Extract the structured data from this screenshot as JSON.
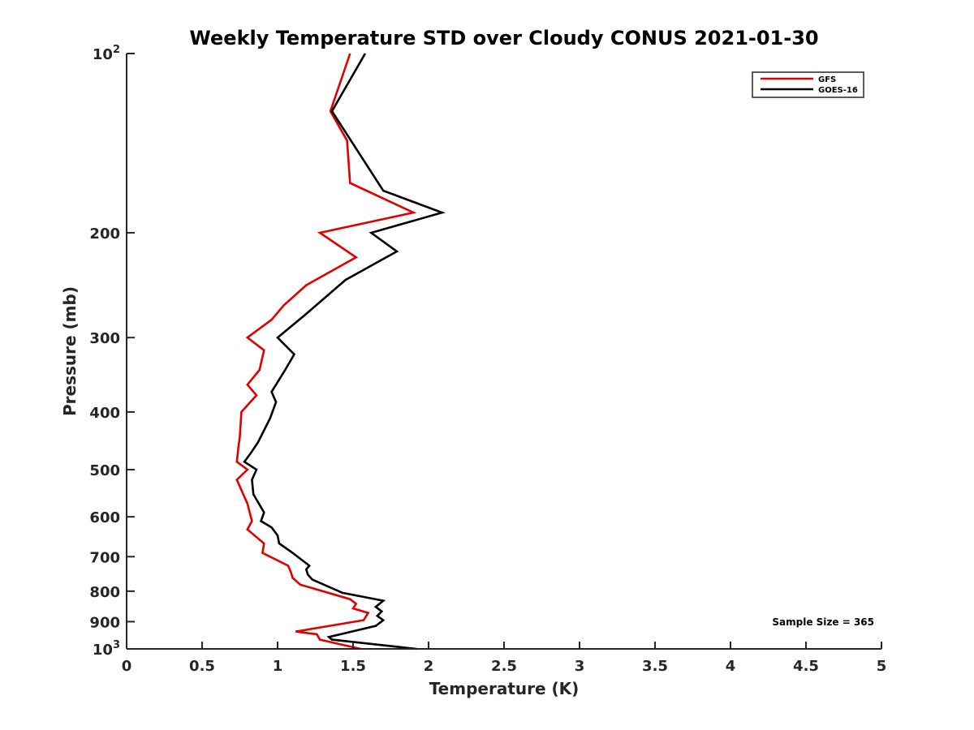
{
  "chart_data": {
    "type": "line",
    "title": "Weekly Temperature STD over Cloudy CONUS 2021-01-30",
    "xlabel": "Temperature (K)",
    "ylabel": "Pressure (mb)",
    "xlim": [
      0,
      5
    ],
    "ylim": [
      100,
      1000
    ],
    "yscale": "log",
    "yreversed": true,
    "grid": false,
    "legend_position": "top-right",
    "x_ticks": [
      0,
      0.5,
      1,
      1.5,
      2,
      2.5,
      3,
      3.5,
      4,
      4.5,
      5
    ],
    "x_tick_labels": [
      "0",
      "0.5",
      "1",
      "1.5",
      "2",
      "2.5",
      "3",
      "3.5",
      "4",
      "4.5",
      "5"
    ],
    "y_ticks": [
      {
        "value": 100,
        "base": "10",
        "exp": "2"
      },
      {
        "value": 200,
        "label": "200"
      },
      {
        "value": 300,
        "label": "300"
      },
      {
        "value": 400,
        "label": "400"
      },
      {
        "value": 500,
        "label": "500"
      },
      {
        "value": 600,
        "label": "600"
      },
      {
        "value": 700,
        "label": "700"
      },
      {
        "value": 800,
        "label": "800"
      },
      {
        "value": 900,
        "label": "900"
      },
      {
        "value": 1000,
        "base": "10",
        "exp": "3"
      }
    ],
    "annotation": "Sample Size = 365",
    "series": [
      {
        "name": "GFS",
        "color": "#e00000",
        "points": [
          [
            1.48,
            100
          ],
          [
            1.35,
            125
          ],
          [
            1.46,
            140
          ],
          [
            1.48,
            165
          ],
          [
            1.9,
            185
          ],
          [
            1.28,
            200
          ],
          [
            1.52,
            220
          ],
          [
            1.19,
            245
          ],
          [
            1.04,
            265
          ],
          [
            0.96,
            280
          ],
          [
            0.8,
            300
          ],
          [
            0.91,
            315
          ],
          [
            0.88,
            340
          ],
          [
            0.8,
            360
          ],
          [
            0.86,
            375
          ],
          [
            0.76,
            400
          ],
          [
            0.75,
            440
          ],
          [
            0.74,
            460
          ],
          [
            0.73,
            485
          ],
          [
            0.8,
            500
          ],
          [
            0.73,
            520
          ],
          [
            0.8,
            570
          ],
          [
            0.83,
            610
          ],
          [
            0.8,
            630
          ],
          [
            0.91,
            665
          ],
          [
            0.9,
            690
          ],
          [
            1.07,
            725
          ],
          [
            1.09,
            745
          ],
          [
            1.1,
            760
          ],
          [
            1.15,
            780
          ],
          [
            1.48,
            825
          ],
          [
            1.52,
            840
          ],
          [
            1.5,
            855
          ],
          [
            1.6,
            870
          ],
          [
            1.57,
            895
          ],
          [
            1.12,
            935
          ],
          [
            1.26,
            945
          ],
          [
            1.28,
            965
          ],
          [
            1.55,
            1000
          ]
        ]
      },
      {
        "name": "GOES-16",
        "color": "#000000",
        "points": [
          [
            1.58,
            100
          ],
          [
            1.36,
            125
          ],
          [
            1.7,
            170
          ],
          [
            2.09,
            185
          ],
          [
            1.62,
            200
          ],
          [
            1.79,
            215
          ],
          [
            1.45,
            240
          ],
          [
            1.18,
            275
          ],
          [
            1.0,
            300
          ],
          [
            1.11,
            320
          ],
          [
            1.05,
            340
          ],
          [
            0.96,
            370
          ],
          [
            0.99,
            385
          ],
          [
            0.95,
            410
          ],
          [
            0.87,
            450
          ],
          [
            0.82,
            470
          ],
          [
            0.78,
            485
          ],
          [
            0.86,
            500
          ],
          [
            0.83,
            520
          ],
          [
            0.84,
            550
          ],
          [
            0.91,
            590
          ],
          [
            0.89,
            610
          ],
          [
            0.96,
            625
          ],
          [
            1.0,
            645
          ],
          [
            1.01,
            665
          ],
          [
            1.1,
            690
          ],
          [
            1.18,
            715
          ],
          [
            1.21,
            725
          ],
          [
            1.19,
            735
          ],
          [
            1.2,
            750
          ],
          [
            1.23,
            765
          ],
          [
            1.43,
            805
          ],
          [
            1.7,
            830
          ],
          [
            1.65,
            850
          ],
          [
            1.69,
            865
          ],
          [
            1.66,
            880
          ],
          [
            1.7,
            895
          ],
          [
            1.65,
            915
          ],
          [
            1.34,
            955
          ],
          [
            1.36,
            965
          ],
          [
            1.92,
            1000
          ]
        ]
      }
    ]
  }
}
